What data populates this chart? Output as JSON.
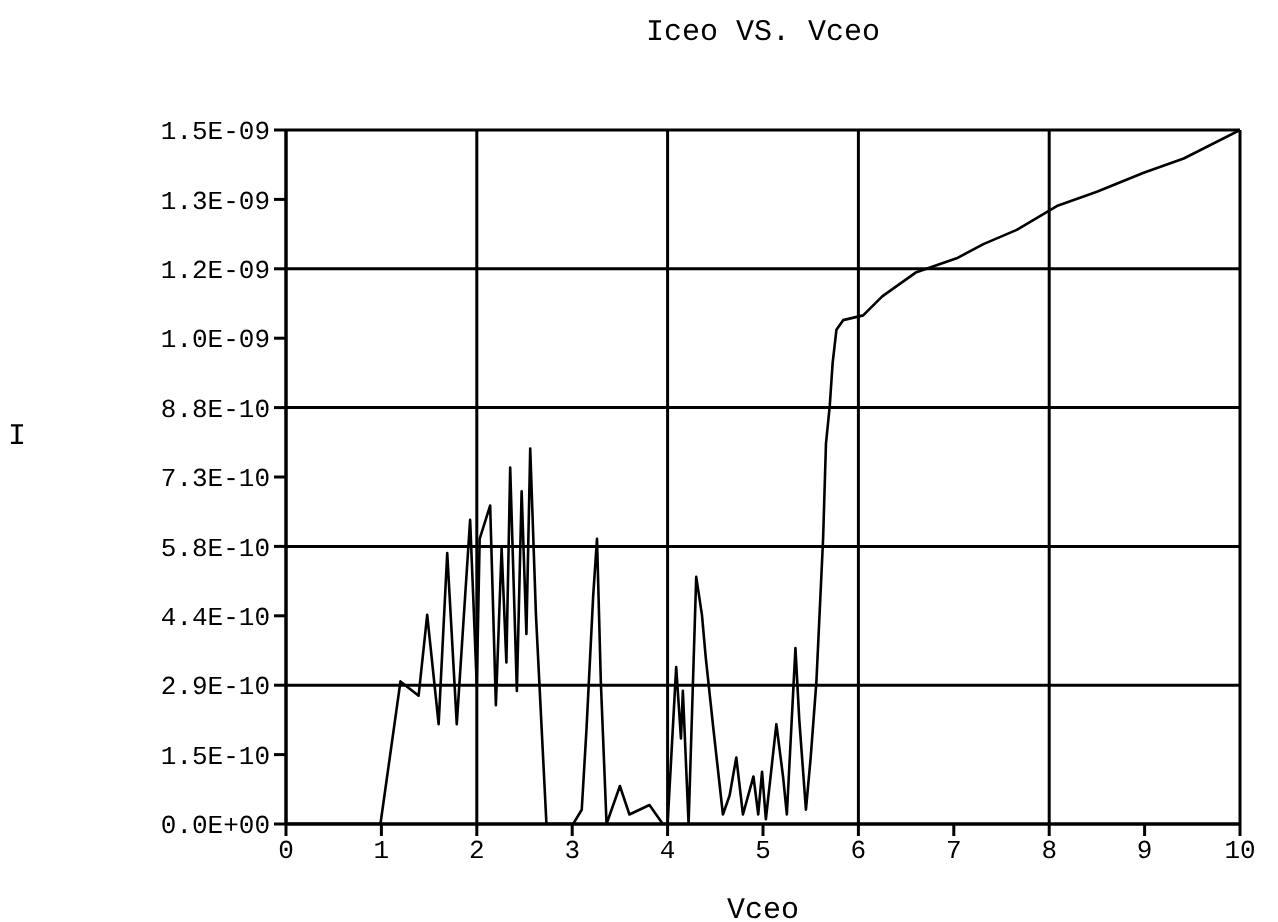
{
  "chart_data": {
    "type": "line",
    "title": "Iceo VS. Vceo",
    "xlabel": "Vceo",
    "ylabel": "I",
    "xlim": [
      0,
      10
    ],
    "xticks": [
      0,
      1,
      2,
      3,
      4,
      5,
      6,
      7,
      8,
      9,
      10
    ],
    "ylim": [
      0,
      1.46e-09
    ],
    "yticks": [
      {
        "value": 0,
        "label": "0.0E+00"
      },
      {
        "value": 1.46e-10,
        "label": "1.5E-10"
      },
      {
        "value": 2.92e-10,
        "label": "2.9E-10"
      },
      {
        "value": 4.38e-10,
        "label": "4.4E-10"
      },
      {
        "value": 5.84e-10,
        "label": "5.8E-10"
      },
      {
        "value": 7.3e-10,
        "label": "7.3E-10"
      },
      {
        "value": 8.76e-10,
        "label": "8.8E-10"
      },
      {
        "value": 1.022e-09,
        "label": "1.0E-09"
      },
      {
        "value": 1.168e-09,
        "label": "1.2E-09"
      },
      {
        "value": 1.314e-09,
        "label": "1.3E-09"
      },
      {
        "value": 1.46e-09,
        "label": "1.5E-09"
      }
    ],
    "grid": true,
    "marker": "none",
    "line_style": "solid",
    "series": [
      {
        "color": "#000000",
        "x": [
          0,
          0.99,
          1.2,
          1.39,
          1.48,
          1.6,
          1.69,
          1.79,
          1.93,
          2.0,
          2.03,
          2.14,
          2.2,
          2.26,
          2.31,
          2.35,
          2.42,
          2.47,
          2.52,
          2.56,
          2.62,
          2.73,
          3.01,
          3.1,
          3.15,
          3.22,
          3.26,
          3.3,
          3.36,
          3.5,
          3.6,
          3.81,
          3.95,
          4.0,
          4.09,
          4.14,
          4.16,
          4.22,
          4.3,
          4.36,
          4.4,
          4.48,
          4.58,
          4.65,
          4.72,
          4.79,
          4.9,
          4.95,
          4.99,
          5.03,
          5.14,
          5.21,
          5.25,
          5.34,
          5.38,
          5.45,
          5.5,
          5.56,
          5.63,
          5.66,
          5.7,
          5.73,
          5.77,
          5.84,
          6.05,
          6.25,
          6.6,
          7.03,
          7.31,
          7.66,
          8.08,
          8.5,
          8.99,
          9.41,
          10
        ],
        "values": [
          0,
          0,
          3e-10,
          2.7e-10,
          4.4e-10,
          2.1e-10,
          5.7e-10,
          2.1e-10,
          6.4e-10,
          2.9e-10,
          6e-10,
          6.7e-10,
          2.5e-10,
          5.8e-10,
          3.4e-10,
          7.5e-10,
          2.8e-10,
          7e-10,
          4e-10,
          7.9e-10,
          4.4e-10,
          0,
          0,
          3e-11,
          2e-10,
          4.8e-10,
          6e-10,
          3e-10,
          0,
          8e-11,
          2e-11,
          4e-11,
          0,
          0,
          3.3e-10,
          1.8e-10,
          2.8e-10,
          0,
          5.2e-10,
          4.4e-10,
          3.5e-10,
          2e-10,
          2e-11,
          6e-11,
          1.4e-10,
          2e-11,
          1e-10,
          2e-11,
          1.1e-10,
          1e-11,
          2.1e-10,
          1e-10,
          2e-11,
          3.7e-10,
          2.2e-10,
          3e-11,
          1.4e-10,
          3e-10,
          6e-10,
          8e-10,
          8.8e-10,
          9.7e-10,
          1.04e-09,
          1.06e-09,
          1.07e-09,
          1.11e-09,
          1.16e-09,
          1.19e-09,
          1.22e-09,
          1.25e-09,
          1.3e-09,
          1.33e-09,
          1.37e-09,
          1.4e-09,
          1.46e-09
        ]
      }
    ]
  }
}
